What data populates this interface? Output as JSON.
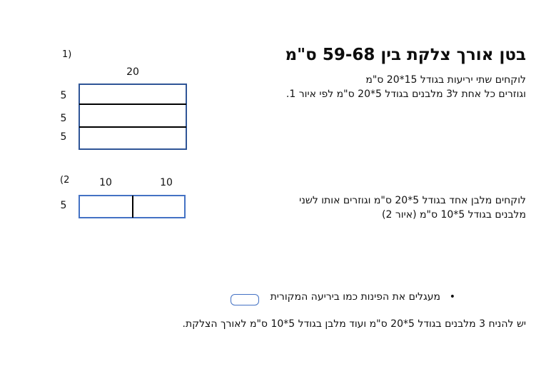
{
  "page": {
    "title": "בטן אורך צלקת בין 59-68 ס\"מ"
  },
  "instructions": {
    "step1_line1": "לוקחים שתי יריעות בגודל 15*20 ס\"מ",
    "step1_line2": "וגוזרים כל אחת ל3 מלבנים בגודל 5*20 ס\"מ לפי איור 1.",
    "step2_line1": "לוקחים מלבן אחד בגודל 5*20 ס\"מ וגוזרים אותו לשני",
    "step2_line2": "מלבנים בגודל 5*10 ס\"מ (איור 2)",
    "bullet_glyph": "•",
    "bullet_text": "מעגלים את הפינות כמו ביריעה המקורית",
    "footer": "יש להניח 3 מלבנים בגודל 5*20 ס\"מ ועוד מלבן בגודל 5*10 ס\"מ לאורך הצלקת."
  },
  "diagram1": {
    "label": "1)",
    "width_label": "20",
    "row_labels": {
      "r1": "5",
      "r2": "5",
      "r3": "5"
    }
  },
  "diagram2": {
    "label": "(2",
    "col_labels": {
      "c1": "10",
      "c2": "10"
    },
    "row_label": "5"
  },
  "colors": {
    "diagram1_border": "#2F5597",
    "diagram2_border": "#4472C4",
    "divider": "#000000"
  }
}
